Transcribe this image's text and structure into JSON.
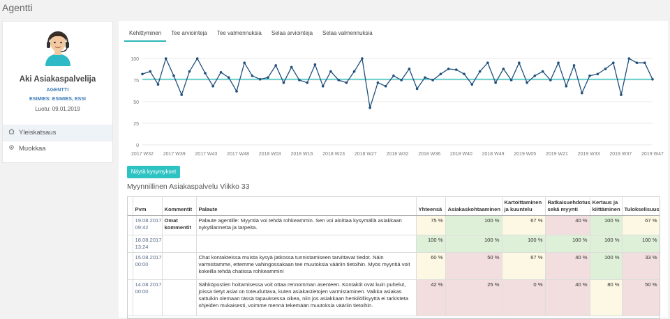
{
  "header": {
    "title": "Agentti"
  },
  "profile": {
    "name": "Aki Asiakaspalvelija",
    "role": "AGENTTI",
    "boss": "ESIMIES: ESIMIES, ESSI",
    "created": "Luotu: 09.01.2019"
  },
  "nav": [
    {
      "label": "Yleiskatsaus",
      "icon": "home-icon"
    },
    {
      "label": "Muokkaa",
      "icon": "gear-icon"
    }
  ],
  "tabs": [
    {
      "label": "Kehittyminen"
    },
    {
      "label": "Tee arviointeja"
    },
    {
      "label": "Tee valmennuksia"
    },
    {
      "label": "Selaa arviointeja"
    },
    {
      "label": "Selaa valmennuksia"
    }
  ],
  "chart_data": {
    "type": "line",
    "ylim": [
      0,
      100
    ],
    "yticks": [
      "100",
      "75",
      "50",
      "25",
      "0"
    ],
    "xtick_labels": [
      "2017 W32",
      "2017 W39",
      "2017 W43",
      "2017 W48",
      "2018 W03",
      "2018 W16",
      "2018 W23",
      "2018 W27",
      "2018 W32",
      "2018 W36",
      "2018 W40",
      "2018 W49",
      "2019 W05",
      "2019 W21",
      "2019 W33",
      "2019 W37",
      "2019 W47"
    ],
    "trend_value": 76,
    "series": [
      {
        "values": [
          82,
          85,
          70,
          100,
          80,
          58,
          85,
          100,
          83,
          68,
          84,
          78,
          62,
          95,
          80,
          76,
          78,
          92,
          72,
          90,
          75,
          72,
          93,
          68,
          85,
          75,
          72,
          85,
          100,
          43,
          72,
          68,
          80,
          75,
          88,
          65,
          78,
          75,
          82,
          88,
          87,
          82,
          70,
          85,
          95,
          72,
          88,
          75,
          95,
          72,
          80,
          85,
          75,
          95,
          68,
          92,
          60,
          80,
          82,
          88,
          95,
          58,
          100,
          95,
          95,
          76
        ]
      }
    ]
  },
  "button": {
    "label": "Näytä kysymykset"
  },
  "section": {
    "title": "Myynnillinen Asiakaspalvelu Viikko 33"
  },
  "table": {
    "headers": [
      "Pvm",
      "Kommentit",
      "Palaute",
      "Yhteensä",
      "Asiakaskohtaaminen",
      "Kartoittaminen ja kuuntelu",
      "Ratkaisuehdotus sekä myynti",
      "Kertaus ja kiittäminen",
      "Tulokselisuus"
    ],
    "rows": [
      {
        "date": "19.08.2017 09:42",
        "comments": "Omat kommentit",
        "feedback": "Palaute agentille: Myyntiä voi tehdä rohkeammin. Sen voi aloittaa kysymällä asiakkaan nykytilannetta ja tarpeita.",
        "values": [
          "75 %",
          "100 %",
          "67 %",
          "40 %",
          "100 %",
          "67 %"
        ],
        "colors": [
          "y",
          "g",
          "y",
          "r",
          "g",
          "y"
        ]
      },
      {
        "date": "18.08.2017 13:24",
        "comments": "",
        "feedback": "",
        "values": [
          "100 %",
          "100 %",
          "100 %",
          "100 %",
          "100 %",
          "100 %"
        ],
        "colors": [
          "g",
          "g",
          "g",
          "g",
          "g",
          "g"
        ]
      },
      {
        "date": "15.08.2017 00:00",
        "comments": "",
        "feedback": "Chat kontakteissa muista kysyä jatkossa tunnistamiseen tarvittavat tiedot. Näin varmistamme, ettemme vahingossakaan tee muutoksia vääriin tietoihin. Myös myyntiä voit kokeilla tehdä chatissa rohkeammin!",
        "values": [
          "60 %",
          "50 %",
          "67 %",
          "40 %",
          "100 %",
          "33 %"
        ],
        "colors": [
          "y",
          "r",
          "y",
          "r",
          "g",
          "r"
        ]
      },
      {
        "date": "14.08.2017 00:00",
        "comments": "",
        "feedback": "Sähköpostien hoitamisessa voit ottaa rennomman asenteen. Kontaktit ovat kuin puhelut, joissa tietyt asiat on toteuduttava, kuten asiakastietojen varmistaminen. Vaikka asiakas sattuikin olemaan tässä tapauksessa oikea, niin jos asiakkaan henkilöllisyyttä ei tarkisteta ohjeiden mukaisesti, voimme mennä tekemään muutoksia vääriin tietoihin.",
        "values": [
          "42 %",
          "25 %",
          "0 %",
          "40 %",
          "80 %",
          "50 %"
        ],
        "colors": [
          "r",
          "r",
          "r",
          "r",
          "y",
          "r"
        ]
      }
    ]
  },
  "colors": {
    "accent": "#2ec3c3",
    "line": "#1f4f7a",
    "trend": "#3cc8c0"
  }
}
